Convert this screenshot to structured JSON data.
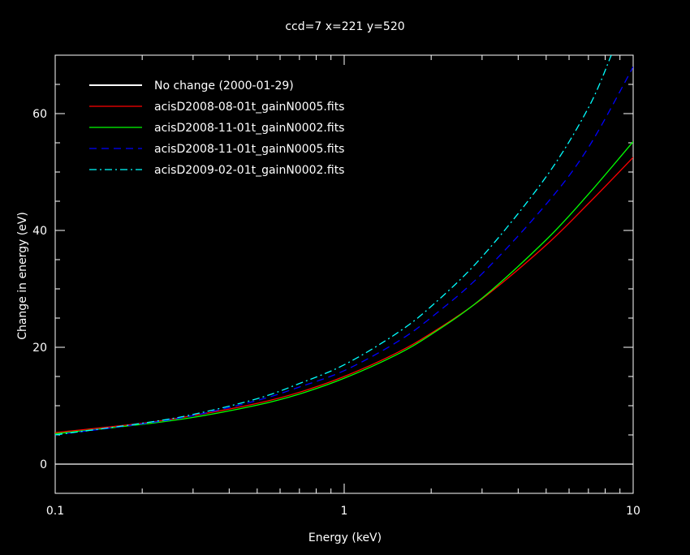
{
  "chart_data": {
    "type": "line",
    "title": "ccd=7 x=221 y=520",
    "xlabel": "Energy (keV)",
    "ylabel": "Change in energy (eV)",
    "xscale": "log",
    "xlim": [
      0.1,
      10
    ],
    "ylim": [
      -5,
      70
    ],
    "xticks": [
      {
        "value": 0.1,
        "label": "0.1"
      },
      {
        "value": 1,
        "label": "1"
      },
      {
        "value": 10,
        "label": "10"
      }
    ],
    "yticks": [
      {
        "value": 0,
        "label": "0"
      },
      {
        "value": 20,
        "label": "20"
      },
      {
        "value": 40,
        "label": "40"
      },
      {
        "value": 60,
        "label": "60"
      }
    ],
    "grid": false,
    "legend_position": "top-left",
    "series": [
      {
        "name": "No change (2000-01-29)",
        "color": "#ffffff",
        "dash": "solid",
        "x": [
          0.1,
          10
        ],
        "y": [
          0,
          0
        ]
      },
      {
        "name": "acisD2008-08-01t_gainN0005.fits",
        "color": "#ff0000",
        "dash": "solid",
        "x": [
          0.1,
          0.2,
          0.3,
          0.5,
          0.7,
          1,
          1.5,
          2,
          3,
          5,
          7,
          10
        ],
        "y": [
          5.4,
          7.0,
          8.3,
          10.4,
          12.3,
          15.0,
          18.9,
          22.4,
          28.3,
          37.5,
          44.6,
          52.5
        ]
      },
      {
        "name": "acisD2008-11-01t_gainN0002.fits",
        "color": "#00ff00",
        "dash": "solid",
        "x": [
          0.1,
          0.2,
          0.3,
          0.5,
          0.7,
          1,
          1.5,
          2,
          3,
          5,
          7,
          10
        ],
        "y": [
          5.2,
          6.8,
          8.0,
          10.1,
          12.0,
          14.7,
          18.6,
          22.2,
          28.4,
          38.4,
          46.2,
          55.2
        ]
      },
      {
        "name": "acisD2008-11-01t_gainN0005.fits",
        "color": "#0000ff",
        "dash": "dashed",
        "x": [
          0.1,
          0.2,
          0.3,
          0.5,
          0.7,
          1,
          1.5,
          2,
          3,
          5,
          7,
          10
        ],
        "y": [
          5.0,
          6.9,
          8.3,
          10.9,
          13.2,
          16.0,
          20.7,
          25.1,
          32.6,
          44.5,
          54.2,
          68.0
        ]
      },
      {
        "name": "acisD2009-02-01t_gainN0002.fits",
        "color": "#00ffff",
        "dash": "dashdot",
        "x": [
          0.1,
          0.2,
          0.3,
          0.5,
          0.7,
          1,
          1.5,
          2,
          3,
          5,
          7,
          8.4
        ],
        "y": [
          5.0,
          7.0,
          8.5,
          11.2,
          13.8,
          17.0,
          22.2,
          27.0,
          35.5,
          49.2,
          61.0,
          70.0
        ]
      }
    ]
  }
}
